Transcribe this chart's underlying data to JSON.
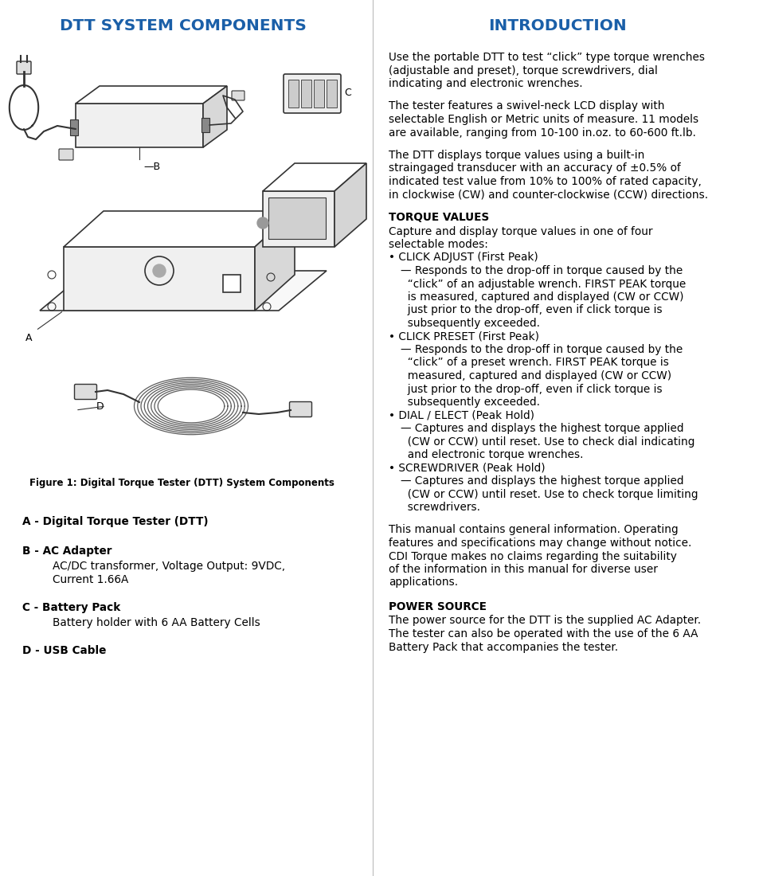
{
  "bg_color": "#ffffff",
  "title_left": "DTT SYSTEM COMPONENTS",
  "title_right": "INTRODUCTION",
  "title_color": "#1a5fa8",
  "title_fontsize": 14.5,
  "figure_caption": "Figure 1: Digital Torque Tester (DTT) System Components",
  "components": [
    {
      "label": "A - Digital Torque Tester (DTT)",
      "detail": ""
    },
    {
      "label": "B - AC Adapter",
      "detail": "AC/DC transformer, Voltage Output: 9VDC,\nCurrent 1.66A"
    },
    {
      "label": "C - Battery Pack",
      "detail": "Battery holder with 6 AA Battery Cells"
    },
    {
      "label": "D - USB Cable",
      "detail": ""
    }
  ],
  "intro_paragraphs": [
    "Use the portable DTT to test “click” type torque wrenches\n(adjustable and preset), torque screwdrivers, dial\nindicating and electronic wrenches.",
    "The tester features a swivel-neck LCD display with\nselectable English or Metric units of measure. 11 models\nare available, ranging from 10-100 in.oz. to 60-600 ft.lb.",
    "The DTT displays torque values using a built-in\nstraingaged transducer with an accuracy of ±0.5% of\nindicated test value from 10% to 100% of rated capacity,\nin clockwise (CW) and counter-clockwise (CCW) directions."
  ],
  "torque_values_header": "TORQUE VALUES",
  "torque_values_intro": "Capture and display torque values in one of four\nselectable modes:",
  "bullet_items": [
    {
      "bullet": "CLICK ADJUST (First Peak)",
      "sub": "— Responds to the drop-off in torque caused by the\n  “click” of an adjustable wrench. FIRST PEAK torque\n  is measured, captured and displayed (CW or CCW)\n  just prior to the drop-off, even if click torque is\n  subsequently exceeded."
    },
    {
      "bullet": "CLICK PRESET (First Peak)",
      "sub": "— Responds to the drop-off in torque caused by the\n  “click” of a preset wrench. FIRST PEAK torque is\n  measured, captured and displayed (CW or CCW)\n  just prior to the drop-off, even if click torque is\n  subsequently exceeded."
    },
    {
      "bullet": "DIAL / ELECT (Peak Hold)",
      "sub": "— Captures and displays the highest torque applied\n  (CW or CCW) until reset. Use to check dial indicating\n  and electronic torque wrenches."
    },
    {
      "bullet": "SCREWDRIVER (Peak Hold)",
      "sub": "— Captures and displays the highest torque applied\n  (CW or CCW) until reset. Use to check torque limiting\n  screwdrivers."
    }
  ],
  "general_info": "This manual contains general information. Operating\nfeatures and specifications may change without notice.\nCDI Torque makes no claims regarding the suitability\nof the information in this manual for diverse user\napplications.",
  "power_source_header": "POWER SOURCE",
  "power_source_text": "The power source for the DTT is the supplied AC Adapter.\nThe tester can also be operated with the use of the 6 AA\nBattery Pack that accompanies the tester."
}
